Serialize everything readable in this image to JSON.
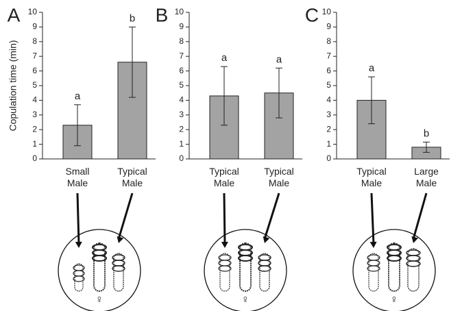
{
  "chart_data": [
    {
      "type": "bar",
      "panel": "A",
      "ylabel": "Copulation time (min)",
      "categories": [
        "Small Male",
        "Typical Male"
      ],
      "values": [
        2.3,
        6.6
      ],
      "errors": [
        1.4,
        2.4
      ],
      "letters": [
        "a",
        "b"
      ],
      "color": "#a3a3a3",
      "ylim": [
        0,
        10
      ],
      "yticks": [
        0,
        1,
        2,
        3,
        4,
        5,
        6,
        7,
        8,
        9,
        10
      ],
      "inset_label": "♀"
    },
    {
      "type": "bar",
      "panel": "B",
      "categories": [
        "Typical Male",
        "Typical Male"
      ],
      "values": [
        4.3,
        4.5
      ],
      "errors": [
        2.0,
        1.7
      ],
      "letters": [
        "a",
        "a"
      ],
      "color": "#a3a3a3",
      "ylim": [
        0,
        10
      ],
      "yticks": [
        0,
        1,
        2,
        3,
        4,
        5,
        6,
        7,
        8,
        9,
        10
      ],
      "inset_label": "♀"
    },
    {
      "type": "bar",
      "panel": "C",
      "categories": [
        "Typical Male",
        "Large Male"
      ],
      "values": [
        4.0,
        0.8
      ],
      "errors": [
        1.6,
        0.35
      ],
      "letters": [
        "a",
        "b"
      ],
      "color": "#a3a3a3",
      "ylim": [
        0,
        10
      ],
      "yticks": [
        0,
        1,
        2,
        3,
        4,
        5,
        6,
        7,
        8,
        9,
        10
      ],
      "inset_label": "♀"
    }
  ]
}
